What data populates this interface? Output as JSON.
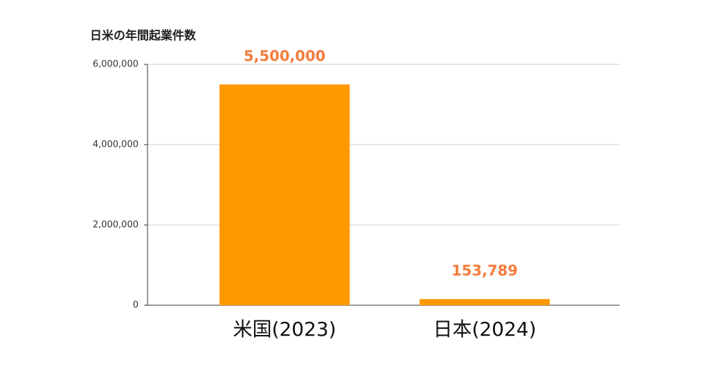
{
  "chart_data": {
    "type": "bar",
    "title": "日米の年間起業件数",
    "categories": [
      "米国(2023)",
      "日本(2024)"
    ],
    "values": [
      5500000,
      153789
    ],
    "value_labels": [
      "5,500,000",
      "153,789"
    ],
    "color": "#ff9900",
    "value_label_color": "#f47c3c",
    "ylim": [
      0,
      6000000
    ],
    "yticks": [
      0,
      {
        "value": 2000000,
        "label": "2,000,000"
      },
      {
        "value": 4000000,
        "label": "4,000,000"
      },
      {
        "value": 6000000,
        "label": "6,000,000"
      }
    ],
    "grid": true
  }
}
